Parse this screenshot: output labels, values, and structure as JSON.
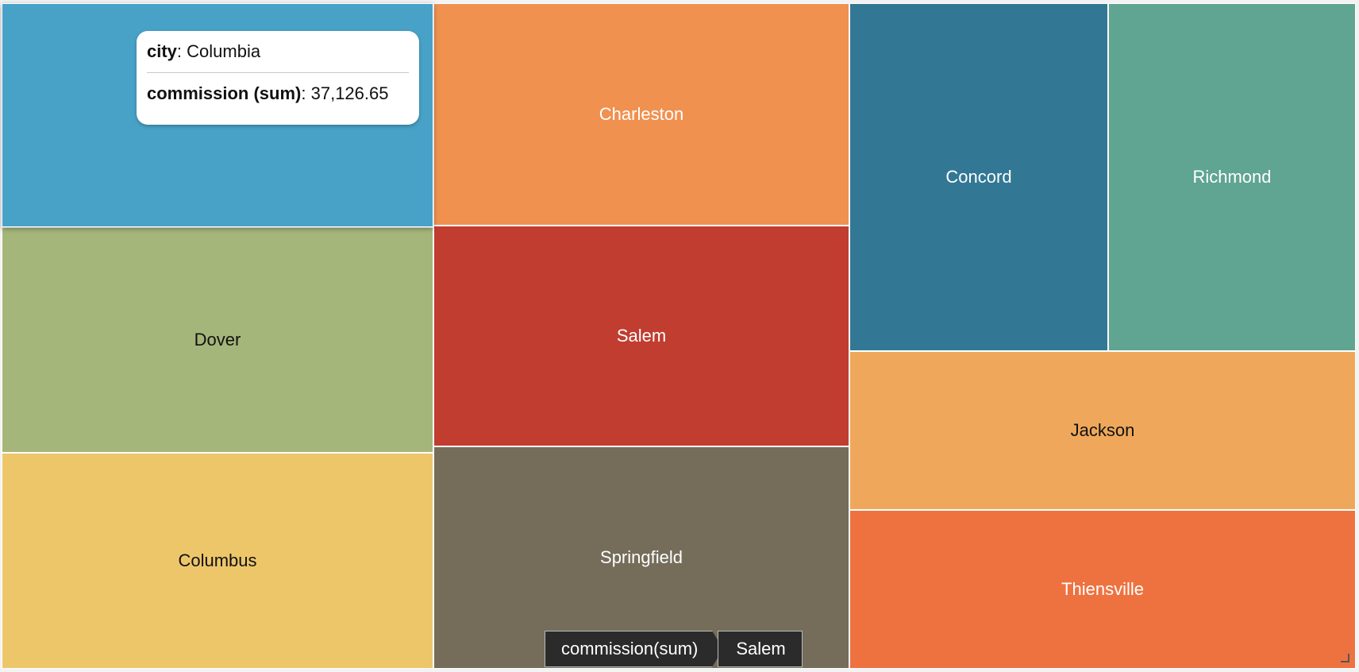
{
  "chart_data": {
    "type": "treemap",
    "measure": "commission (sum)",
    "tiles": [
      {
        "name": "Columbia",
        "color": "#48A2C7",
        "label_color": "#ffffff"
      },
      {
        "name": "Dover",
        "color": "#A5B67A",
        "label_color": "#111111"
      },
      {
        "name": "Columbus",
        "color": "#EEC66A",
        "label_color": "#111111"
      },
      {
        "name": "Charleston",
        "color": "#F0914F",
        "label_color": "#ffffff"
      },
      {
        "name": "Salem",
        "color": "#C03D30",
        "label_color": "#ffffff"
      },
      {
        "name": "Springfield",
        "color": "#756D5A",
        "label_color": "#ffffff"
      },
      {
        "name": "Concord",
        "color": "#327895",
        "label_color": "#ffffff"
      },
      {
        "name": "Richmond",
        "color": "#5FA591",
        "label_color": "#ffffff"
      },
      {
        "name": "Jackson",
        "color": "#EFA85B",
        "label_color": "#111111"
      },
      {
        "name": "Thiensville",
        "color": "#EE7240",
        "label_color": "#ffffff"
      }
    ]
  },
  "tooltip": {
    "city_key": "city",
    "city_value": "Columbia",
    "measure_key": "commission (sum)",
    "measure_value": "37,126.65"
  },
  "breadcrumb": {
    "items": [
      "commission(sum)",
      "Salem"
    ]
  }
}
